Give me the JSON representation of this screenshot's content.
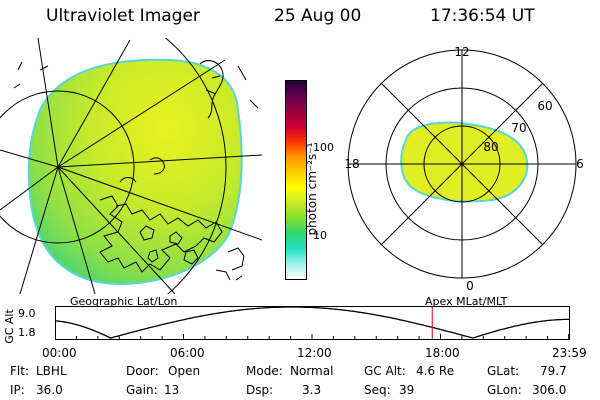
{
  "header": {
    "title": "Ultraviolet Imager",
    "date": "25 Aug 00",
    "time": "17:36:54 UT"
  },
  "colorbar": {
    "unit_label": "photon cm⁻²s⁻¹",
    "scale": "log",
    "ticks": [
      "100",
      "10"
    ],
    "tick_values": [
      100,
      10
    ],
    "range": [
      2,
      1000
    ],
    "colors": [
      "#ffffff",
      "#9ef0e8",
      "#22e0c8",
      "#30d870",
      "#80e030",
      "#cce830",
      "#ffff00",
      "#ffcc00",
      "#ff9900",
      "#ff3300",
      "#cc0033",
      "#99003a",
      "#660055",
      "#220033"
    ]
  },
  "geographic_panel": {
    "label": "Geographic Lat/Lon"
  },
  "apex_panel": {
    "label": "Apex MLat/MLT",
    "mlt_labels": [
      "12",
      "6",
      "0",
      "18"
    ],
    "mlt_values": [
      12,
      6,
      0,
      18
    ],
    "mlat_labels": [
      "60",
      "70",
      "80"
    ],
    "mlat_values": [
      60,
      70,
      80
    ]
  },
  "altitude_plot": {
    "axis_label": "GC Alt",
    "y_ticks": [
      "9.0",
      "1.8"
    ],
    "y_range": [
      1.8,
      9.0
    ],
    "x_ticks": [
      "00:00",
      "06:00",
      "12:00",
      "18:00",
      "23:59"
    ],
    "x_tick_hours": [
      0,
      6,
      12,
      18,
      23.983
    ],
    "marker_hour": 17.615,
    "marker_color": "#e00000"
  },
  "info": {
    "flt_label": "Flt:",
    "flt_value": "LBHL",
    "door_label": "Door:",
    "door_value": "Open",
    "mode_label": "Mode:",
    "mode_value": "Normal",
    "gcalt_label": "GC Alt:",
    "gcalt_value": "4.6 Re",
    "glat_label": "GLat:",
    "glat_value": "79.7",
    "ip_label": "IP:",
    "ip_value": "36.0",
    "gain_label": "Gain:",
    "gain_value": "13",
    "dsp_label": "Dsp:",
    "dsp_value": "3.3",
    "seq_label": "Seq:",
    "seq_value": "39",
    "glon_label": "GLon:",
    "glon_value": "306.0"
  }
}
